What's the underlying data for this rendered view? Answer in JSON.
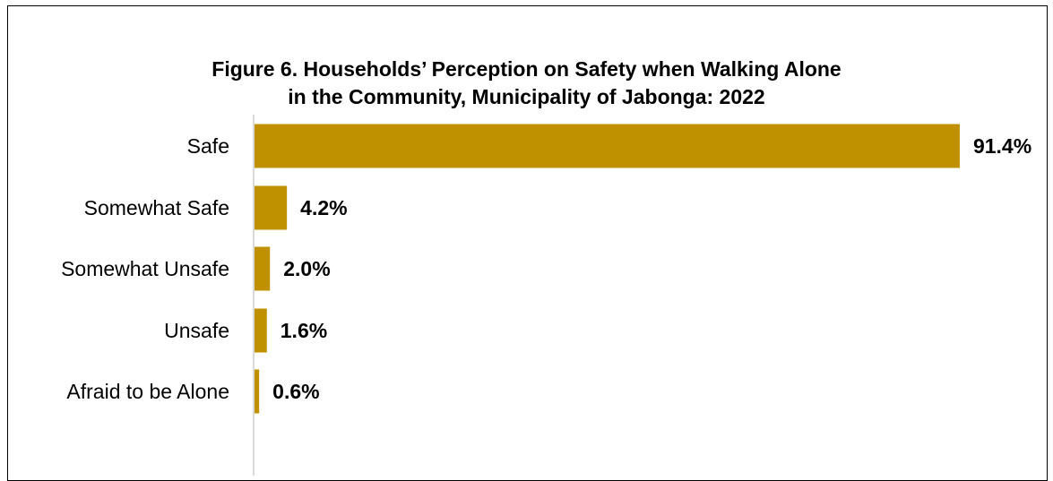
{
  "chart_data": {
    "type": "bar",
    "orientation": "horizontal",
    "title_line1": "Figure 6. Households’ Perception on Safety when Walking Alone",
    "title_line2": "in the Community, Municipality of Jabonga: 2022",
    "categories": [
      "Safe",
      "Somewhat Safe",
      "Somewhat Unsafe",
      "Unsafe",
      "Afraid to be Alone"
    ],
    "values": [
      91.4,
      4.2,
      2.0,
      1.6,
      0.6
    ],
    "value_labels": [
      "91.4%",
      "4.2%",
      "2.0%",
      "1.6%",
      "0.6%"
    ],
    "xlim": [
      0,
      100
    ],
    "grid": false,
    "legend": "none",
    "bar_color": "#BF9000",
    "axis_color": "#D9D9D9"
  }
}
